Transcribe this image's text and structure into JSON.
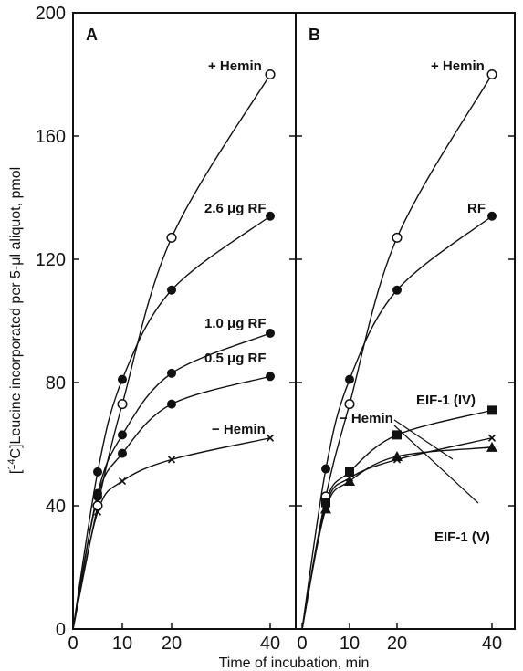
{
  "chart_data": {
    "type": "line",
    "xlabel": "Time of incubation, min",
    "ylabel": "[14C]Leucine incorporated per 5-μl aliquot, pmol",
    "ylim": [
      0,
      200
    ],
    "xlim": [
      0,
      42
    ],
    "x_ticks": [
      0,
      10,
      20,
      40
    ],
    "y_ticks": [
      0,
      40,
      80,
      120,
      160,
      200
    ],
    "grid": false,
    "panels": [
      {
        "label": "A",
        "series": [
          {
            "name": "+Hemin",
            "marker": "open-circle",
            "x": [
              0,
              5,
              10,
              20,
              40
            ],
            "y": [
              0,
              40,
              73,
              127,
              180
            ]
          },
          {
            "name": "2.6 μg RF",
            "marker": "filled-circle",
            "x": [
              0,
              5,
              10,
              20,
              40
            ],
            "y": [
              0,
              51,
              81,
              110,
              134
            ]
          },
          {
            "name": "1.0 μg RF",
            "marker": "filled-circle",
            "x": [
              0,
              5,
              10,
              20,
              40
            ],
            "y": [
              0,
              44,
              63,
              83,
              96
            ]
          },
          {
            "name": "0.5 μg RF",
            "marker": "filled-circle",
            "x": [
              0,
              5,
              10,
              20,
              40
            ],
            "y": [
              0,
              43,
              57,
              73,
              82
            ]
          },
          {
            "name": "−Hemin",
            "marker": "cross",
            "x": [
              0,
              5,
              10,
              20,
              40
            ],
            "y": [
              0,
              38,
              48,
              55,
              62
            ]
          }
        ]
      },
      {
        "label": "B",
        "series": [
          {
            "name": "+Hemin",
            "marker": "open-circle",
            "x": [
              0,
              5,
              10,
              20,
              40
            ],
            "y": [
              0,
              43,
              73,
              127,
              180
            ]
          },
          {
            "name": "RF",
            "marker": "filled-circle",
            "x": [
              0,
              5,
              10,
              20,
              40
            ],
            "y": [
              0,
              52,
              81,
              110,
              134
            ]
          },
          {
            "name": "EIF-1 (IV)",
            "marker": "filled-square",
            "x": [
              0,
              5,
              10,
              20,
              40
            ],
            "y": [
              0,
              41,
              51,
              63,
              71
            ]
          },
          {
            "name": "−Hemin",
            "marker": "cross",
            "x": [
              0,
              5,
              10,
              20,
              40
            ],
            "y": [
              0,
              40,
              49,
              55,
              62
            ]
          },
          {
            "name": "EIF-1 (V)",
            "marker": "filled-triangle",
            "x": [
              0,
              5,
              10,
              20,
              40
            ],
            "y": [
              0,
              39,
              48,
              56,
              59
            ]
          }
        ]
      }
    ]
  },
  "text": {
    "panelA": "A",
    "panelB": "B",
    "xlabel": "Time of incubation, min",
    "ylabel_pre": "[",
    "ylabel_sup": "14",
    "ylabel_post": "C]Leucine incorporated per 5-μl aliquot, pmol",
    "a_hemin_plus": "+ Hemin",
    "a_rf26": "2.6 μg RF",
    "a_rf10": "1.0 μg RF",
    "a_rf05": "0.5 μg RF",
    "a_hemin_minus": "− Hemin",
    "b_hemin_plus": "+ Hemin",
    "b_rf": "RF",
    "b_eif_iv": "EIF-1 (IV)",
    "b_hemin_minus": "− Hemin",
    "b_eif_v": "EIF-1 (V)",
    "y0": "0",
    "y40": "40",
    "y80": "80",
    "y120": "120",
    "y160": "160",
    "y200": "200",
    "ax_0": "0",
    "ax_10": "10",
    "ax_20": "20",
    "ax_40": "40",
    "bx_0": "0",
    "bx_10": "10",
    "bx_20": "20",
    "bx_40": "40"
  }
}
